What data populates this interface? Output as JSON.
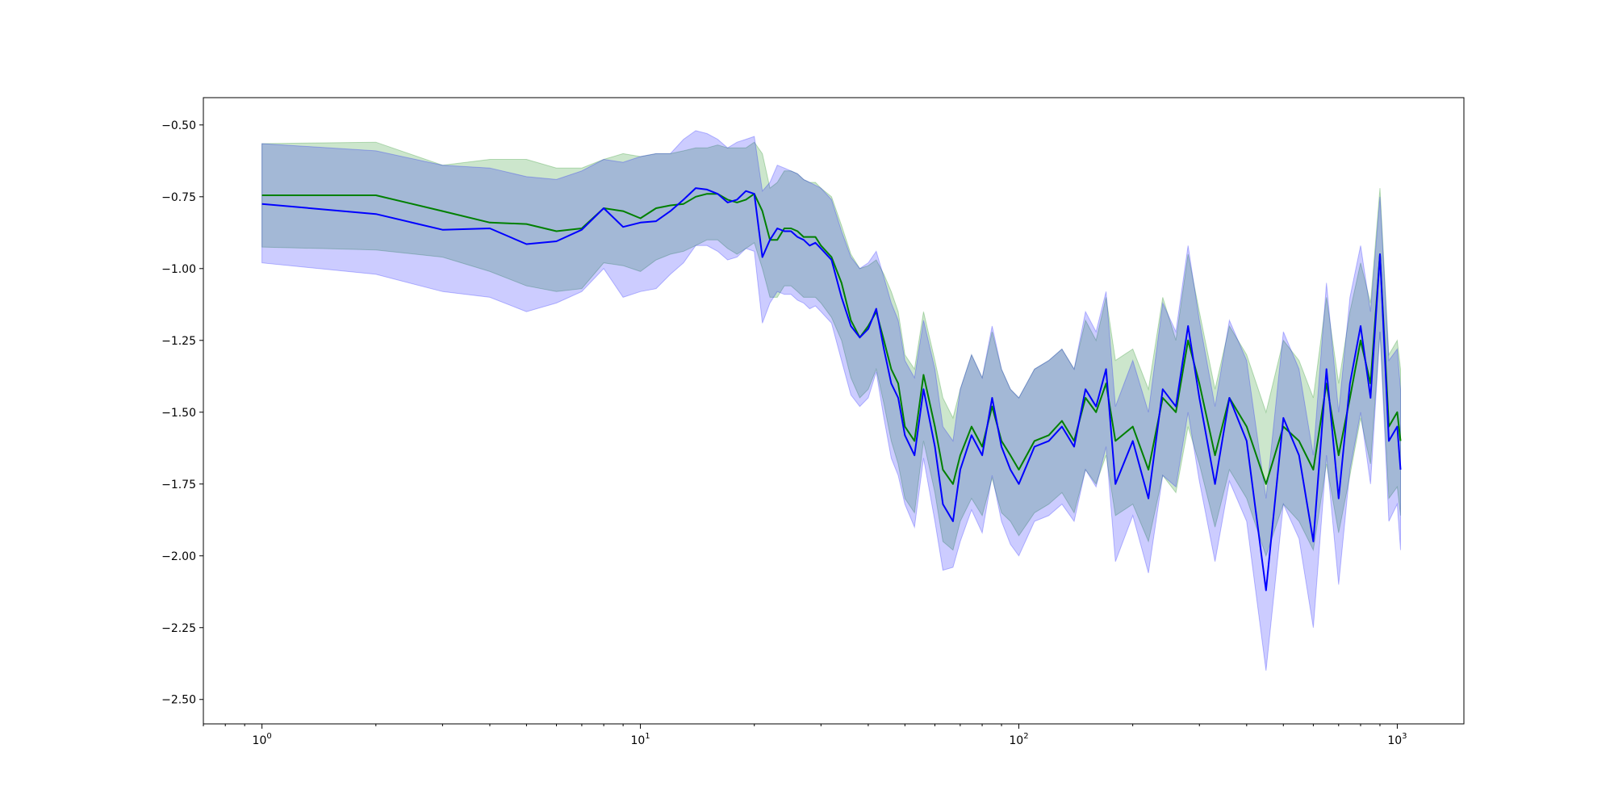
{
  "chart_data": {
    "type": "line",
    "title": "",
    "xlabel": "",
    "ylabel": "",
    "xscale": "log",
    "xlim": [
      0.7,
      1500
    ],
    "ylim": [
      -2.585,
      -0.405
    ],
    "x_ticks": [
      {
        "base": "10",
        "exp": "0",
        "value": 1
      },
      {
        "base": "10",
        "exp": "1",
        "value": 10
      },
      {
        "base": "10",
        "exp": "2",
        "value": 100
      },
      {
        "base": "10",
        "exp": "3",
        "value": 1000
      }
    ],
    "y_ticks": [
      {
        "value": -0.5,
        "label": "−0.50"
      },
      {
        "value": -0.75,
        "label": "−0.75"
      },
      {
        "value": -1.0,
        "label": "−1.00"
      },
      {
        "value": -1.25,
        "label": "−1.25"
      },
      {
        "value": -1.5,
        "label": "−1.50"
      },
      {
        "value": -1.75,
        "label": "−1.75"
      },
      {
        "value": -2.0,
        "label": "−2.00"
      },
      {
        "value": -2.25,
        "label": "−2.25"
      },
      {
        "value": -2.5,
        "label": "−2.50"
      }
    ],
    "grid": false,
    "legend": "none",
    "colors": {
      "green": "#008000",
      "blue": "#0000ff",
      "green_band": "#008000",
      "blue_band": "#0000ff"
    },
    "series": [
      {
        "color": "green",
        "x": [
          1,
          2,
          3,
          4,
          5,
          6,
          7,
          8,
          9,
          10,
          11,
          12,
          13,
          14,
          15,
          16,
          17,
          18,
          19,
          20,
          21,
          22,
          23,
          24,
          25,
          26,
          27,
          28,
          29,
          30,
          32,
          34,
          36,
          38,
          40,
          42,
          44,
          46,
          48,
          50,
          53,
          56,
          60,
          63,
          67,
          70,
          75,
          80,
          85,
          90,
          95,
          100,
          110,
          120,
          130,
          140,
          150,
          160,
          170,
          180,
          200,
          220,
          240,
          260,
          280,
          300,
          330,
          360,
          400,
          450,
          500,
          550,
          600,
          650,
          700,
          750,
          800,
          850,
          900,
          950,
          1000,
          1020
        ],
        "y": [
          -0.745,
          -0.745,
          -0.8,
          -0.84,
          -0.845,
          -0.87,
          -0.86,
          -0.79,
          -0.8,
          -0.825,
          -0.79,
          -0.78,
          -0.775,
          -0.75,
          -0.74,
          -0.74,
          -0.76,
          -0.77,
          -0.76,
          -0.74,
          -0.8,
          -0.9,
          -0.9,
          -0.86,
          -0.86,
          -0.87,
          -0.89,
          -0.89,
          -0.89,
          -0.92,
          -0.96,
          -1.05,
          -1.18,
          -1.24,
          -1.2,
          -1.15,
          -1.25,
          -1.35,
          -1.4,
          -1.55,
          -1.6,
          -1.37,
          -1.55,
          -1.7,
          -1.75,
          -1.65,
          -1.55,
          -1.62,
          -1.48,
          -1.6,
          -1.65,
          -1.7,
          -1.6,
          -1.58,
          -1.53,
          -1.6,
          -1.45,
          -1.5,
          -1.4,
          -1.6,
          -1.55,
          -1.7,
          -1.45,
          -1.5,
          -1.25,
          -1.4,
          -1.65,
          -1.45,
          -1.55,
          -1.75,
          -1.55,
          -1.6,
          -1.7,
          -1.4,
          -1.65,
          -1.45,
          -1.25,
          -1.4,
          -0.95,
          -1.55,
          -1.5,
          -1.6
        ],
        "upper": [
          -0.565,
          -0.56,
          -0.64,
          -0.62,
          -0.62,
          -0.65,
          -0.65,
          -0.62,
          -0.6,
          -0.61,
          -0.6,
          -0.6,
          -0.59,
          -0.58,
          -0.58,
          -0.57,
          -0.58,
          -0.58,
          -0.58,
          -0.56,
          -0.6,
          -0.72,
          -0.7,
          -0.66,
          -0.66,
          -0.67,
          -0.69,
          -0.7,
          -0.7,
          -0.72,
          -0.75,
          -0.85,
          -0.95,
          -1.0,
          -0.99,
          -0.97,
          -1.02,
          -1.08,
          -1.15,
          -1.3,
          -1.35,
          -1.15,
          -1.32,
          -1.45,
          -1.52,
          -1.42,
          -1.3,
          -1.38,
          -1.22,
          -1.35,
          -1.42,
          -1.45,
          -1.35,
          -1.32,
          -1.28,
          -1.35,
          -1.18,
          -1.25,
          -1.1,
          -1.32,
          -1.28,
          -1.42,
          -1.1,
          -1.25,
          -0.95,
          -1.15,
          -1.42,
          -1.2,
          -1.3,
          -1.5,
          -1.25,
          -1.32,
          -1.45,
          -1.1,
          -1.4,
          -1.15,
          -0.98,
          -1.12,
          -0.72,
          -1.3,
          -1.25,
          -1.35
        ],
        "lower": [
          -0.925,
          -0.935,
          -0.96,
          -1.01,
          -1.06,
          -1.08,
          -1.07,
          -0.98,
          -0.99,
          -1.01,
          -0.97,
          -0.95,
          -0.94,
          -0.92,
          -0.9,
          -0.9,
          -0.93,
          -0.95,
          -0.93,
          -0.91,
          -1.0,
          -1.1,
          -1.1,
          -1.06,
          -1.06,
          -1.08,
          -1.1,
          -1.1,
          -1.1,
          -1.12,
          -1.17,
          -1.25,
          -1.38,
          -1.45,
          -1.42,
          -1.35,
          -1.47,
          -1.6,
          -1.68,
          -1.8,
          -1.85,
          -1.6,
          -1.78,
          -1.95,
          -1.98,
          -1.88,
          -1.8,
          -1.86,
          -1.73,
          -1.85,
          -1.88,
          -1.93,
          -1.85,
          -1.82,
          -1.78,
          -1.85,
          -1.7,
          -1.75,
          -1.65,
          -1.86,
          -1.82,
          -1.95,
          -1.72,
          -1.78,
          -1.55,
          -1.68,
          -1.9,
          -1.7,
          -1.8,
          -2.0,
          -1.82,
          -1.88,
          -1.98,
          -1.68,
          -1.92,
          -1.72,
          -1.52,
          -1.68,
          -1.22,
          -1.8,
          -1.76,
          -1.86
        ]
      },
      {
        "color": "blue",
        "x": [
          1,
          2,
          3,
          4,
          5,
          6,
          7,
          8,
          9,
          10,
          11,
          12,
          13,
          14,
          15,
          16,
          17,
          18,
          19,
          20,
          21,
          22,
          23,
          24,
          25,
          26,
          27,
          28,
          29,
          30,
          32,
          34,
          36,
          38,
          40,
          42,
          44,
          46,
          48,
          50,
          53,
          56,
          60,
          63,
          67,
          70,
          75,
          80,
          85,
          90,
          95,
          100,
          110,
          120,
          130,
          140,
          150,
          160,
          170,
          180,
          200,
          220,
          240,
          260,
          280,
          300,
          330,
          360,
          400,
          450,
          500,
          550,
          600,
          650,
          700,
          750,
          800,
          850,
          900,
          950,
          1000,
          1020
        ],
        "y": [
          -0.775,
          -0.81,
          -0.865,
          -0.86,
          -0.915,
          -0.905,
          -0.865,
          -0.79,
          -0.855,
          -0.84,
          -0.835,
          -0.8,
          -0.76,
          -0.72,
          -0.725,
          -0.74,
          -0.77,
          -0.76,
          -0.73,
          -0.74,
          -0.96,
          -0.9,
          -0.86,
          -0.87,
          -0.87,
          -0.89,
          -0.9,
          -0.92,
          -0.91,
          -0.93,
          -0.97,
          -1.1,
          -1.2,
          -1.24,
          -1.21,
          -1.14,
          -1.28,
          -1.4,
          -1.45,
          -1.58,
          -1.65,
          -1.42,
          -1.62,
          -1.82,
          -1.88,
          -1.7,
          -1.58,
          -1.65,
          -1.45,
          -1.62,
          -1.7,
          -1.75,
          -1.62,
          -1.6,
          -1.55,
          -1.62,
          -1.42,
          -1.48,
          -1.35,
          -1.75,
          -1.6,
          -1.8,
          -1.42,
          -1.48,
          -1.2,
          -1.45,
          -1.75,
          -1.45,
          -1.6,
          -2.12,
          -1.52,
          -1.65,
          -1.95,
          -1.35,
          -1.8,
          -1.4,
          -1.2,
          -1.45,
          -0.95,
          -1.6,
          -1.55,
          -1.7
        ],
        "upper": [
          -0.565,
          -0.59,
          -0.64,
          -0.65,
          -0.68,
          -0.69,
          -0.66,
          -0.62,
          -0.63,
          -0.61,
          -0.6,
          -0.6,
          -0.55,
          -0.52,
          -0.53,
          -0.55,
          -0.58,
          -0.56,
          -0.55,
          -0.54,
          -0.73,
          -0.7,
          -0.64,
          -0.65,
          -0.66,
          -0.67,
          -0.69,
          -0.7,
          -0.71,
          -0.72,
          -0.76,
          -0.87,
          -0.96,
          -1.0,
          -0.98,
          -0.94,
          -1.03,
          -1.12,
          -1.18,
          -1.32,
          -1.38,
          -1.18,
          -1.35,
          -1.55,
          -1.6,
          -1.42,
          -1.3,
          -1.38,
          -1.2,
          -1.35,
          -1.42,
          -1.45,
          -1.35,
          -1.32,
          -1.28,
          -1.35,
          -1.15,
          -1.22,
          -1.08,
          -1.48,
          -1.32,
          -1.5,
          -1.12,
          -1.22,
          -0.92,
          -1.18,
          -1.48,
          -1.18,
          -1.32,
          -1.8,
          -1.22,
          -1.35,
          -1.65,
          -1.05,
          -1.5,
          -1.1,
          -0.92,
          -1.15,
          -0.75,
          -1.32,
          -1.28,
          -1.42
        ],
        "lower": [
          -0.98,
          -1.02,
          -1.08,
          -1.1,
          -1.15,
          -1.12,
          -1.08,
          -1.0,
          -1.1,
          -1.08,
          -1.07,
          -1.02,
          -0.98,
          -0.92,
          -0.92,
          -0.94,
          -0.97,
          -0.96,
          -0.93,
          -0.94,
          -1.19,
          -1.12,
          -1.08,
          -1.09,
          -1.09,
          -1.11,
          -1.12,
          -1.14,
          -1.13,
          -1.15,
          -1.19,
          -1.32,
          -1.44,
          -1.48,
          -1.45,
          -1.36,
          -1.52,
          -1.66,
          -1.72,
          -1.82,
          -1.9,
          -1.66,
          -1.88,
          -2.05,
          -2.04,
          -1.95,
          -1.84,
          -1.92,
          -1.72,
          -1.88,
          -1.96,
          -2.0,
          -1.88,
          -1.86,
          -1.82,
          -1.88,
          -1.7,
          -1.76,
          -1.62,
          -2.02,
          -1.86,
          -2.06,
          -1.72,
          -1.76,
          -1.5,
          -1.74,
          -2.02,
          -1.74,
          -1.88,
          -2.4,
          -1.82,
          -1.94,
          -2.25,
          -1.65,
          -2.1,
          -1.7,
          -1.5,
          -1.75,
          -1.22,
          -1.88,
          -1.82,
          -1.98
        ]
      }
    ]
  }
}
